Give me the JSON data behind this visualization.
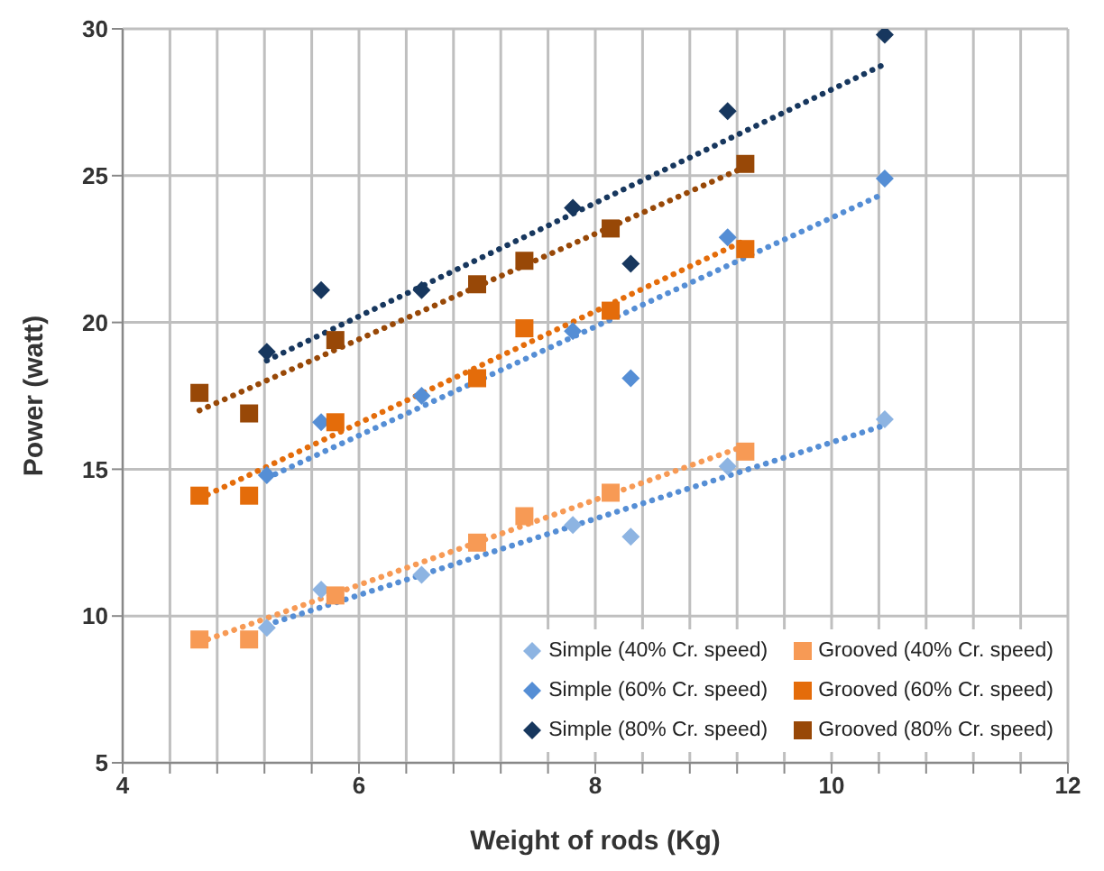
{
  "chart_data": {
    "type": "scatter",
    "xlabel": "Weight of rods (Kg)",
    "ylabel": "Power (watt)",
    "xlim": [
      4,
      12
    ],
    "ylim": [
      5,
      30
    ],
    "xticks": [
      4,
      {
        "value": 4.4,
        "label": null
      },
      {
        "value": 4.8,
        "label": null
      },
      {
        "value": 5.2,
        "label": null
      },
      {
        "value": 5.6,
        "label": null
      },
      6,
      {
        "value": 6.4,
        "label": null
      },
      {
        "value": 6.8,
        "label": null
      },
      {
        "value": 7.2,
        "label": null
      },
      {
        "value": 7.6,
        "label": null
      },
      8,
      {
        "value": 8.4,
        "label": null
      },
      {
        "value": 8.8,
        "label": null
      },
      {
        "value": 9.2,
        "label": null
      },
      {
        "value": 9.6,
        "label": null
      },
      10,
      {
        "value": 10.4,
        "label": null
      },
      {
        "value": 10.8,
        "label": null
      },
      {
        "value": 11.2,
        "label": null
      },
      {
        "value": 11.6,
        "label": null
      },
      12
    ],
    "yticks": [
      5,
      10,
      15,
      20,
      25,
      30
    ],
    "grid": true,
    "legend": "bottom right",
    "series": [
      {
        "name": "Simple (40% Cr. speed)",
        "marker": "diamond",
        "color": "#8db4e2",
        "x": [
          5.22,
          5.68,
          6.53,
          7.81,
          8.3,
          9.12,
          10.45
        ],
        "values": [
          9.6,
          10.9,
          11.4,
          13.1,
          12.7,
          15.1,
          16.7
        ]
      },
      {
        "name": "Grooved (40% Cr. speed)",
        "marker": "square",
        "color": "#f79a55",
        "x": [
          4.65,
          5.07,
          5.8,
          7.0,
          7.4,
          8.13,
          9.27
        ],
        "values": [
          9.2,
          9.2,
          10.7,
          12.5,
          13.4,
          14.2,
          15.6
        ]
      },
      {
        "name": "Simple (60% Cr. speed)",
        "marker": "diamond",
        "color": "#558ed5",
        "x": [
          5.22,
          5.68,
          6.53,
          7.81,
          8.3,
          9.12,
          10.45
        ],
        "values": [
          14.8,
          16.6,
          17.5,
          19.7,
          18.1,
          22.9,
          24.9
        ]
      },
      {
        "name": "Grooved (60% Cr. speed)",
        "marker": "square",
        "color": "#e46c0a",
        "x": [
          4.65,
          5.07,
          5.8,
          7.0,
          7.4,
          8.13,
          9.27
        ],
        "values": [
          14.1,
          14.1,
          16.6,
          18.1,
          19.8,
          20.4,
          22.5
        ]
      },
      {
        "name": "Simple (80% Cr. speed)",
        "marker": "diamond",
        "color": "#17375e",
        "x": [
          5.22,
          5.68,
          6.53,
          7.81,
          8.3,
          9.12,
          10.45
        ],
        "values": [
          19.0,
          21.1,
          21.1,
          23.9,
          22.0,
          27.2,
          29.8
        ]
      },
      {
        "name": "Grooved (80% Cr. speed)",
        "marker": "square",
        "color": "#984807",
        "x": [
          4.65,
          5.07,
          5.8,
          7.0,
          7.4,
          8.13,
          9.27
        ],
        "values": [
          17.6,
          16.9,
          19.4,
          21.3,
          22.1,
          23.2,
          25.4
        ]
      },
      {
        "type": "line",
        "line_style": "dotted",
        "marker": "none",
        "color": "#558ed5",
        "x": [
          5.22,
          10.45
        ],
        "values": [
          9.7,
          16.5
        ]
      },
      {
        "type": "line",
        "line_style": "dotted",
        "marker": "none",
        "color": "#f79a55",
        "x": [
          4.65,
          9.27
        ],
        "values": [
          9.1,
          15.8
        ]
      },
      {
        "type": "line",
        "line_style": "dotted",
        "marker": "none",
        "color": "#558ed5",
        "x": [
          5.22,
          10.45
        ],
        "values": [
          14.7,
          24.4
        ]
      },
      {
        "type": "line",
        "line_style": "dotted",
        "marker": "none",
        "color": "#e46c0a",
        "x": [
          4.65,
          9.27
        ],
        "values": [
          14.0,
          22.8
        ]
      },
      {
        "type": "line",
        "line_style": "dotted",
        "marker": "none",
        "color": "#17375e",
        "x": [
          5.22,
          10.45
        ],
        "values": [
          18.7,
          28.8
        ]
      },
      {
        "type": "line",
        "line_style": "dotted",
        "marker": "none",
        "color": "#984807",
        "x": [
          4.65,
          9.27
        ],
        "values": [
          17.0,
          25.3
        ]
      }
    ]
  }
}
